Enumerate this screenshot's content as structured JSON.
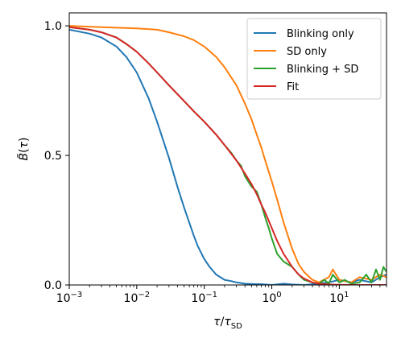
{
  "chart_data": {
    "type": "line",
    "title": "",
    "xlabel": "τ/τ_SD",
    "ylabel": "B̃(τ)",
    "xscale": "log",
    "xlim": [
      0.001,
      50
    ],
    "ylim": [
      0,
      1.05
    ],
    "grid": false,
    "legend_position": "top-right",
    "x_ticks": [
      {
        "value": 0.001,
        "base": "10",
        "exp": "−3"
      },
      {
        "value": 0.01,
        "base": "10",
        "exp": "−2"
      },
      {
        "value": 0.1,
        "base": "10",
        "exp": "−1"
      },
      {
        "value": 1,
        "base": "10",
        "exp": "0"
      },
      {
        "value": 10,
        "base": "10",
        "exp": "1"
      }
    ],
    "y_ticks": [
      {
        "value": 0.0,
        "label": "0.0"
      },
      {
        "value": 0.5,
        "label": "0.5"
      },
      {
        "value": 1.0,
        "label": "1.0"
      }
    ],
    "series": [
      {
        "name": "Blinking only",
        "color": "#1f77b4",
        "x": [
          0.001,
          0.002,
          0.003,
          0.005,
          0.007,
          0.01,
          0.015,
          0.02,
          0.03,
          0.04,
          0.05,
          0.06,
          0.07,
          0.08,
          0.1,
          0.12,
          0.15,
          0.2,
          0.25,
          0.3,
          0.4,
          0.5,
          0.7,
          1.0,
          1.5,
          2.0,
          3.0,
          5.0,
          7.0,
          10.0,
          15.0,
          20.0,
          30.0,
          40.0,
          50.0
        ],
        "y": [
          0.985,
          0.97,
          0.955,
          0.92,
          0.88,
          0.82,
          0.72,
          0.63,
          0.49,
          0.38,
          0.3,
          0.24,
          0.19,
          0.15,
          0.1,
          0.07,
          0.04,
          0.02,
          0.015,
          0.01,
          0.005,
          0.004,
          0.003,
          0.0,
          0.005,
          0.002,
          0.0,
          0.005,
          0.01,
          0.02,
          0.01,
          0.02,
          0.01,
          0.03,
          0.04
        ]
      },
      {
        "name": "SD only",
        "color": "#ff7f0e",
        "x": [
          0.001,
          0.003,
          0.01,
          0.02,
          0.03,
          0.05,
          0.07,
          0.1,
          0.15,
          0.2,
          0.3,
          0.4,
          0.5,
          0.6,
          0.7,
          0.8,
          1.0,
          1.2,
          1.5,
          2.0,
          2.5,
          3.0,
          4.0,
          5.0,
          7.0,
          8.0,
          10.0,
          15.0,
          20.0,
          30.0,
          40.0,
          50.0
        ],
        "y": [
          1.0,
          0.995,
          0.99,
          0.985,
          0.975,
          0.96,
          0.945,
          0.92,
          0.88,
          0.84,
          0.77,
          0.7,
          0.64,
          0.58,
          0.53,
          0.48,
          0.4,
          0.33,
          0.24,
          0.14,
          0.08,
          0.05,
          0.02,
          0.01,
          0.03,
          0.06,
          0.02,
          0.01,
          0.03,
          0.02,
          0.04,
          0.03
        ]
      },
      {
        "name": "Blinking + SD",
        "color": "#2ca02c",
        "x": [
          0.001,
          0.002,
          0.003,
          0.005,
          0.007,
          0.01,
          0.015,
          0.02,
          0.03,
          0.05,
          0.07,
          0.1,
          0.15,
          0.2,
          0.25,
          0.3,
          0.35,
          0.4,
          0.5,
          0.6,
          0.7,
          0.8,
          0.9,
          1.0,
          1.2,
          1.5,
          2.0,
          2.5,
          3.0,
          4.0,
          5.0,
          6.0,
          7.0,
          8.0,
          10.0,
          12.0,
          15.0,
          20.0,
          25.0,
          30.0,
          35.0,
          40.0,
          45.0,
          50.0
        ],
        "y": [
          0.995,
          0.985,
          0.975,
          0.955,
          0.93,
          0.9,
          0.855,
          0.82,
          0.77,
          0.71,
          0.67,
          0.63,
          0.58,
          0.54,
          0.51,
          0.48,
          0.46,
          0.42,
          0.38,
          0.36,
          0.31,
          0.26,
          0.22,
          0.18,
          0.12,
          0.09,
          0.07,
          0.04,
          0.02,
          0.01,
          0.005,
          0.02,
          0.005,
          0.04,
          0.01,
          0.02,
          0.005,
          0.01,
          0.04,
          0.01,
          0.06,
          0.02,
          0.07,
          0.05
        ]
      },
      {
        "name": "Fit",
        "color": "#d62728",
        "x": [
          0.001,
          0.002,
          0.003,
          0.005,
          0.007,
          0.01,
          0.015,
          0.02,
          0.03,
          0.05,
          0.07,
          0.1,
          0.15,
          0.2,
          0.3,
          0.4,
          0.5,
          0.6,
          0.7,
          0.8,
          1.0,
          1.2,
          1.5,
          2.0,
          2.5,
          3.0,
          4.0,
          5.0,
          7.0,
          10.0,
          15.0,
          20.0,
          30.0,
          50.0
        ],
        "y": [
          0.995,
          0.985,
          0.975,
          0.955,
          0.93,
          0.9,
          0.855,
          0.82,
          0.77,
          0.71,
          0.67,
          0.63,
          0.58,
          0.54,
          0.48,
          0.43,
          0.39,
          0.35,
          0.31,
          0.28,
          0.22,
          0.17,
          0.12,
          0.07,
          0.04,
          0.025,
          0.01,
          0.005,
          0.002,
          0.001,
          0.0,
          0.0,
          0.0,
          0.0
        ]
      }
    ]
  }
}
